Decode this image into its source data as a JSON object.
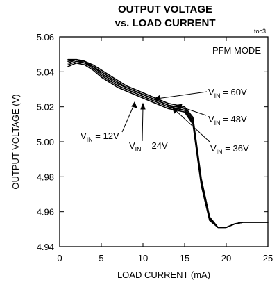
{
  "chart_data": {
    "type": "line",
    "title": "OUTPUT VOLTAGE",
    "subtitle": "vs. LOAD CURRENT",
    "figure_id": "toc3",
    "xlabel": "LOAD CURRENT (mA)",
    "ylabel": "OUTPUT VOLTAGE  (V)",
    "xlim": [
      0,
      25
    ],
    "ylim": [
      4.94,
      5.06
    ],
    "xticks": [
      "0",
      "5",
      "10",
      "15",
      "20",
      "25"
    ],
    "yticks": [
      "4.94",
      "4.96",
      "4.98",
      "5.00",
      "5.02",
      "5.04",
      "5.06"
    ],
    "mode_label": "PFM MODE",
    "grid": false,
    "series": [
      {
        "name": "VIN = 12V",
        "sub": "IN",
        "pre": "V",
        "post": " = 12V",
        "x": [
          1,
          2,
          3,
          4,
          5,
          6,
          7,
          8,
          9,
          10,
          11,
          12,
          13,
          14,
          15,
          16,
          17,
          18,
          19,
          20,
          21,
          22,
          23,
          24,
          25
        ],
        "y": [
          5.043,
          5.045,
          5.044,
          5.041,
          5.037,
          5.034,
          5.031,
          5.029,
          5.027,
          5.025,
          5.023,
          5.021,
          5.019,
          5.018,
          5.017,
          5.01,
          4.975,
          4.955,
          4.951,
          4.951,
          4.953,
          4.954,
          4.954,
          4.954,
          4.954
        ]
      },
      {
        "name": "VIN = 24V",
        "sub": "IN",
        "pre": "V",
        "post": " = 24V",
        "x": [
          1,
          2,
          3,
          4,
          5,
          6,
          7,
          8,
          9,
          10,
          11,
          12,
          13,
          14,
          15,
          16,
          17,
          18,
          19,
          20,
          21,
          22,
          23,
          24,
          25
        ],
        "y": [
          5.044,
          5.046,
          5.045,
          5.042,
          5.038,
          5.035,
          5.032,
          5.03,
          5.028,
          5.026,
          5.024,
          5.022,
          5.02,
          5.019,
          5.018,
          5.011,
          4.976,
          4.956,
          4.951,
          4.951,
          4.953,
          4.954,
          4.954,
          4.954,
          4.954
        ]
      },
      {
        "name": "VIN = 36V",
        "sub": "IN",
        "pre": "V",
        "post": " = 36V",
        "x": [
          1,
          2,
          3,
          4,
          5,
          6,
          7,
          8,
          9,
          10,
          11,
          12,
          13,
          14,
          15,
          16,
          17,
          18,
          19,
          20,
          21,
          22,
          23,
          24,
          25
        ],
        "y": [
          5.045,
          5.047,
          5.045,
          5.043,
          5.039,
          5.036,
          5.033,
          5.031,
          5.029,
          5.027,
          5.025,
          5.023,
          5.021,
          5.019,
          5.018,
          5.012,
          4.977,
          4.956,
          4.951,
          4.951,
          4.953,
          4.954,
          4.954,
          4.954,
          4.954
        ]
      },
      {
        "name": "VIN = 48V",
        "sub": "IN",
        "pre": "V",
        "post": " = 48V",
        "x": [
          1,
          2,
          3,
          4,
          5,
          6,
          7,
          8,
          9,
          10,
          11,
          12,
          13,
          14,
          15,
          16,
          17,
          18,
          19,
          20,
          21,
          22,
          23,
          24,
          25
        ],
        "y": [
          5.046,
          5.047,
          5.046,
          5.043,
          5.04,
          5.037,
          5.034,
          5.031,
          5.029,
          5.027,
          5.025,
          5.023,
          5.021,
          5.02,
          5.019,
          5.013,
          4.978,
          4.957,
          4.951,
          4.951,
          4.953,
          4.954,
          4.954,
          4.954,
          4.954
        ]
      },
      {
        "name": "VIN = 60V",
        "sub": "IN",
        "pre": "V",
        "post": " = 60V",
        "x": [
          1,
          2,
          3,
          4,
          5,
          6,
          7,
          8,
          9,
          10,
          11,
          12,
          13,
          14,
          15,
          16,
          17,
          18,
          19,
          20,
          21,
          22,
          23,
          24,
          25
        ],
        "y": [
          5.047,
          5.047,
          5.046,
          5.044,
          5.041,
          5.038,
          5.035,
          5.032,
          5.03,
          5.028,
          5.026,
          5.024,
          5.022,
          5.021,
          5.02,
          5.014,
          4.979,
          4.957,
          4.951,
          4.951,
          4.953,
          4.954,
          4.954,
          4.954,
          4.954
        ]
      }
    ]
  }
}
